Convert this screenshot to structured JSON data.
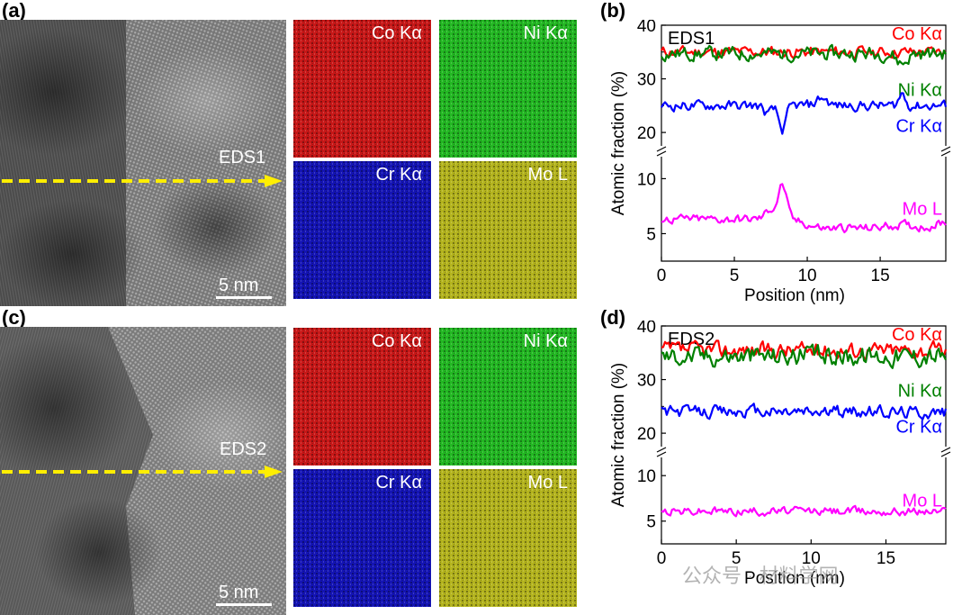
{
  "panels": {
    "a": {
      "letter": "(a)",
      "line_label": "EDS1",
      "scale_label": "5 nm",
      "maps": [
        {
          "label": "Co Kα",
          "color": "#c81818"
        },
        {
          "label": "Ni Kα",
          "color": "#23b823"
        },
        {
          "label": "Cr Kα",
          "color": "#1414b4"
        },
        {
          "label": "Mo L",
          "color": "#b4b41e"
        }
      ]
    },
    "c": {
      "letter": "(c)",
      "line_label": "EDS2",
      "scale_label": "5 nm",
      "maps": [
        {
          "label": "Co Kα",
          "color": "#c81818"
        },
        {
          "label": "Ni Kα",
          "color": "#23b823"
        },
        {
          "label": "Cr Kα",
          "color": "#1414b4"
        },
        {
          "label": "Mo L",
          "color": "#b4b41e"
        }
      ]
    },
    "b": {
      "letter": "(b)"
    },
    "d": {
      "letter": "(d)"
    }
  },
  "watermark": "公众号 · 材料学网",
  "chart_data": [
    {
      "type": "line",
      "title": "EDS1",
      "xlabel": "Position (nm)",
      "ylabel": "Atomic fraction (%)",
      "xlim": [
        0,
        19.5
      ],
      "xticks": [
        0,
        5,
        10,
        15
      ],
      "y_break": {
        "lower": [
          2.5,
          12
        ],
        "upper": [
          17.5,
          40
        ]
      },
      "yticks": [
        5,
        10,
        20,
        30,
        40
      ],
      "series": [
        {
          "name": "Co Kα",
          "color": "#ff0000",
          "label_y": 38.5,
          "base": 35,
          "noise": 0.9,
          "bumps": []
        },
        {
          "name": "Ni Kα",
          "color": "#008000",
          "label_y": 28,
          "base": 34.7,
          "noise": 1.1,
          "bumps": [
            [
              16.5,
              -1.8,
              0.5
            ]
          ]
        },
        {
          "name": "Cr Kα",
          "color": "#0000ff",
          "label_y": 21.3,
          "base": 25,
          "noise": 0.8,
          "bumps": [
            [
              7.3,
              -1.5,
              0.4
            ],
            [
              8.3,
              -4.5,
              0.35
            ],
            [
              11,
              1.5,
              0.5
            ],
            [
              16.5,
              2.2,
              0.3
            ]
          ]
        },
        {
          "name": "Mo L",
          "color": "#ff00ff",
          "label_y": 7.3,
          "base": 6.3,
          "noise": 0.35,
          "bumps": [
            [
              7.5,
              0.9,
              0.5
            ],
            [
              8.3,
              3.1,
              0.4
            ],
            [
              11,
              -0.6,
              1.5
            ],
            [
              14,
              -0.8,
              2.5
            ],
            [
              18,
              -0.6,
              1.5
            ]
          ]
        }
      ]
    },
    {
      "type": "line",
      "title": "EDS2",
      "xlabel": "Position (nm)",
      "ylabel": "Atomic fraction (%)",
      "xlim": [
        0,
        19
      ],
      "xticks": [
        0,
        5,
        10,
        15
      ],
      "y_break": {
        "lower": [
          2.5,
          12
        ],
        "upper": [
          17.5,
          40
        ]
      },
      "yticks": [
        5,
        10,
        20,
        30,
        40
      ],
      "series": [
        {
          "name": "Co Kα",
          "color": "#ff0000",
          "label_y": 38.5,
          "base": 35.5,
          "noise": 1.3,
          "bumps": []
        },
        {
          "name": "Ni Kα",
          "color": "#008000",
          "label_y": 28,
          "base": 34.5,
          "noise": 1.6,
          "bumps": []
        },
        {
          "name": "Cr Kα",
          "color": "#0000ff",
          "label_y": 21.3,
          "base": 24,
          "noise": 1.0,
          "bumps": []
        },
        {
          "name": "Mo L",
          "color": "#ff00ff",
          "label_y": 7.3,
          "base": 6.1,
          "noise": 0.4,
          "bumps": []
        }
      ]
    }
  ]
}
